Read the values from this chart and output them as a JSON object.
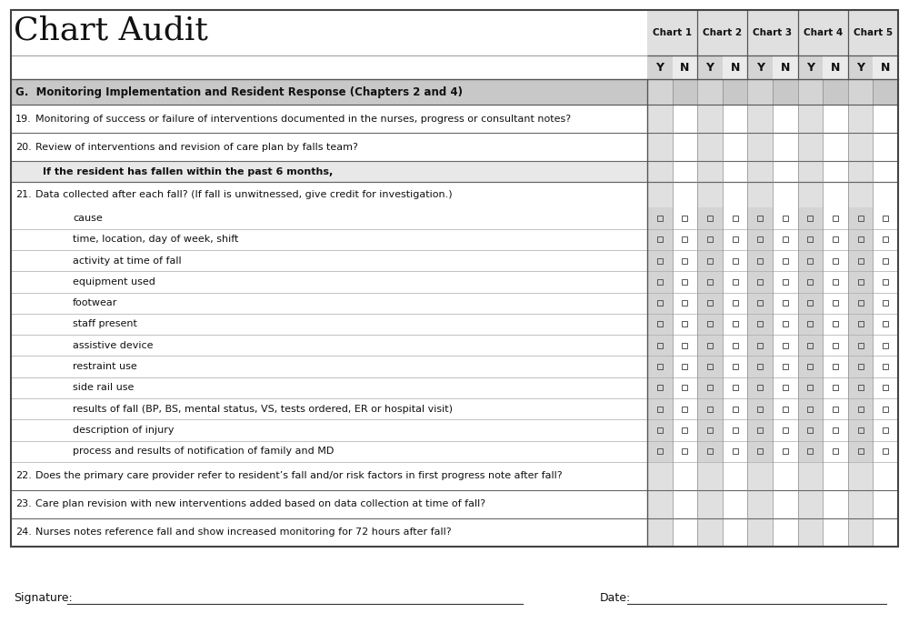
{
  "title": "Chart Audit",
  "section_header": "G.  Monitoring Implementation and Resident Response (Chapters 2 and 4)",
  "chart_headers": [
    "Chart 1",
    "Chart 2",
    "Chart 3",
    "Chart 4",
    "Chart 5"
  ],
  "yn_labels": [
    "Y",
    "N",
    "Y",
    "N",
    "Y",
    "N",
    "Y",
    "N",
    "Y",
    "N"
  ],
  "rows": [
    {
      "num": "19.",
      "text": "Monitoring of success or failure of interventions documented in the nurses, progress or consultant notes?",
      "type": "normal",
      "has_checkboxes": false
    },
    {
      "num": "20.",
      "text": "Review of interventions and revision of care plan by falls team?",
      "type": "normal",
      "has_checkboxes": false
    },
    {
      "num": "",
      "text": "If the resident has fallen within the past 6 months,",
      "type": "bold_indent",
      "has_checkboxes": false
    },
    {
      "num": "21.",
      "text": "Data collected after each fall? (If fall is unwitnessed, give credit for investigation.)",
      "type": "normal_nocheck",
      "has_checkboxes": false
    },
    {
      "num": "",
      "text": "cause",
      "type": "sub",
      "has_checkboxes": true
    },
    {
      "num": "",
      "text": "time, location, day of week, shift",
      "type": "sub",
      "has_checkboxes": true
    },
    {
      "num": "",
      "text": "activity at time of fall",
      "type": "sub",
      "has_checkboxes": true
    },
    {
      "num": "",
      "text": "equipment used",
      "type": "sub",
      "has_checkboxes": true
    },
    {
      "num": "",
      "text": "footwear",
      "type": "sub",
      "has_checkboxes": true
    },
    {
      "num": "",
      "text": "staff present",
      "type": "sub",
      "has_checkboxes": true
    },
    {
      "num": "",
      "text": "assistive device",
      "type": "sub",
      "has_checkboxes": true
    },
    {
      "num": "",
      "text": "restraint use",
      "type": "sub",
      "has_checkboxes": true
    },
    {
      "num": "",
      "text": "side rail use",
      "type": "sub",
      "has_checkboxes": true
    },
    {
      "num": "",
      "text": "results of fall (BP, BS, mental status, VS, tests ordered, ER or hospital visit)",
      "type": "sub",
      "has_checkboxes": true
    },
    {
      "num": "",
      "text": "description of injury",
      "type": "sub",
      "has_checkboxes": true
    },
    {
      "num": "",
      "text": "process and results of notification of family and MD",
      "type": "sub",
      "has_checkboxes": true
    },
    {
      "num": "22.",
      "text": "Does the primary care provider refer to resident’s fall and/or risk factors in first progress note after fall?",
      "type": "normal",
      "has_checkboxes": false
    },
    {
      "num": "23.",
      "text": "Care plan revision with new interventions added based on data collection at time of fall?",
      "type": "normal",
      "has_checkboxes": false
    },
    {
      "num": "24.",
      "text": "Nurses notes reference fall and show increased monitoring for 72 hours after fall?",
      "type": "normal",
      "has_checkboxes": false
    }
  ],
  "signature_label": "Signature:",
  "date_label": "Date:",
  "bg_color": "#ffffff",
  "col_header_bg": "#e0e0e0",
  "yn_shaded": "#d4d4d4",
  "yn_light": "#ebebeb",
  "section_bg": "#c8c8c8",
  "bold_row_bg": "#e8e8e8",
  "sub_col_shaded": "#d4d4d4",
  "normal_col_shaded": "#e0e0e0",
  "title_fontsize": 26,
  "body_fontsize": 8.0
}
